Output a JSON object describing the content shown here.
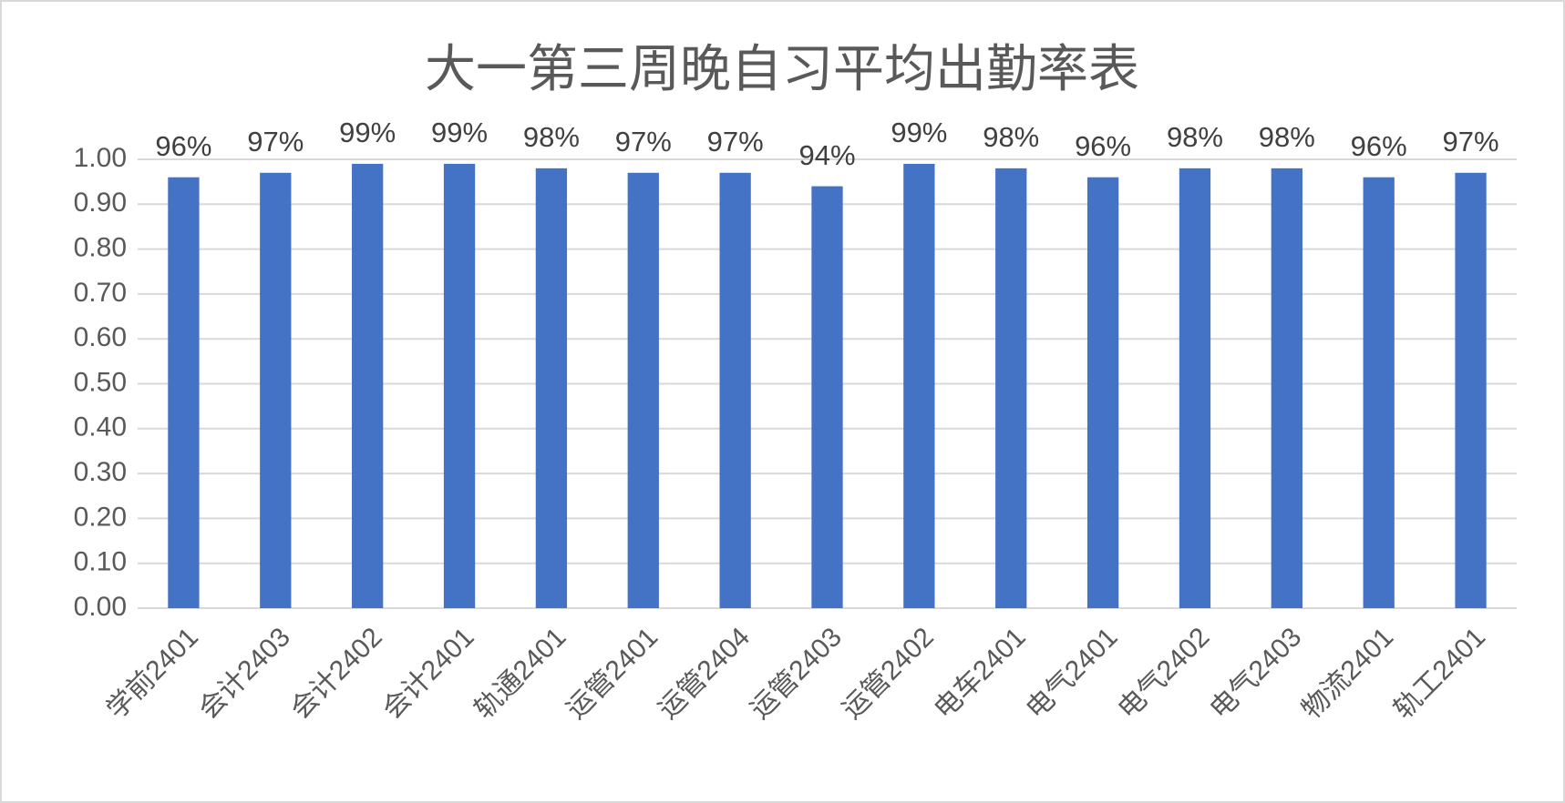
{
  "chart_data": {
    "type": "bar",
    "title": "大一第三周晚自习平均出勤率表",
    "categories": [
      "学前2401",
      "会计2403",
      "会计2402",
      "会计2401",
      "轨通2401",
      "运管2401",
      "运管2404",
      "运管2403",
      "运管2402",
      "电车2401",
      "电气2401",
      "电气2402",
      "电气2403",
      "物流2401",
      "轨工2401"
    ],
    "values": [
      0.96,
      0.97,
      0.99,
      0.99,
      0.98,
      0.97,
      0.97,
      0.94,
      0.99,
      0.98,
      0.96,
      0.98,
      0.98,
      0.96,
      0.97
    ],
    "value_labels": [
      "96%",
      "97%",
      "99%",
      "99%",
      "98%",
      "97%",
      "97%",
      "94%",
      "99%",
      "98%",
      "96%",
      "98%",
      "98%",
      "96%",
      "97%"
    ],
    "color": "#4472c4",
    "ylim": [
      0,
      1
    ],
    "yticks": [
      {
        "value": 0,
        "label": "0.00"
      },
      {
        "value": 0.1,
        "label": "0.10"
      },
      {
        "value": 0.2,
        "label": "0.20"
      },
      {
        "value": 0.3,
        "label": "0.30"
      },
      {
        "value": 0.4,
        "label": "0.40"
      },
      {
        "value": 0.5,
        "label": "0.50"
      },
      {
        "value": 0.6,
        "label": "0.60"
      },
      {
        "value": 0.7,
        "label": "0.70"
      },
      {
        "value": 0.8,
        "label": "0.80"
      },
      {
        "value": 0.9,
        "label": "0.90"
      },
      {
        "value": 1,
        "label": "1.00"
      }
    ],
    "grid": true
  }
}
